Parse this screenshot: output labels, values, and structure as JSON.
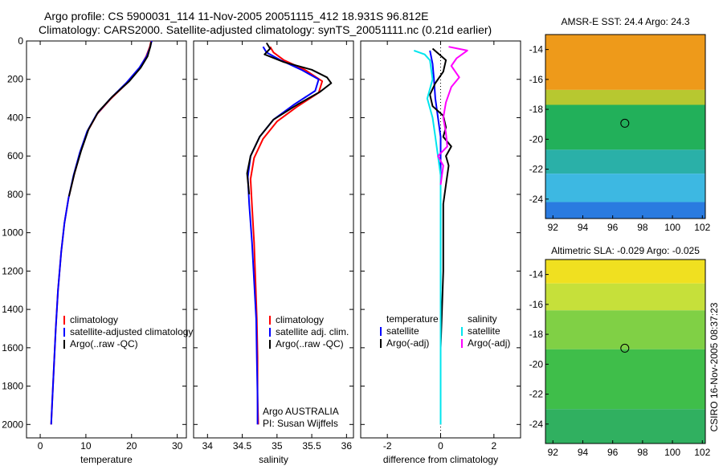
{
  "header": {
    "title_line1": "Argo profile: CS 5900031_114 11-Nov-2005 20051115_412 18.931S 96.812E",
    "title_line2": "Climatology: CARS2000. Satellite-adjusted climatology: synTS_20051111.nc (0.21d earlier)"
  },
  "colors": {
    "climatology": "#ff0000",
    "satellite": "#0000ff",
    "argo": "#000000",
    "salinity_satellite": "#00e5ee",
    "salinity_argo": "#ff00ff",
    "frame": "#000000"
  },
  "side_label": "CSIRO 16-Nov-2005 08:37:23",
  "chart_data": [
    {
      "type": "line",
      "panel": "temperature",
      "xlabel": "temperature",
      "ylabel": "",
      "xlim": [
        -3,
        32
      ],
      "ylim": [
        2070,
        0
      ],
      "x_ticks": [
        0,
        10,
        20,
        30
      ],
      "y_ticks": [
        0,
        200,
        400,
        600,
        800,
        1000,
        1200,
        1400,
        1600,
        1800,
        2000
      ],
      "legend_position": "lower-right",
      "series": [
        {
          "name": "climatology",
          "color": "#ff0000",
          "points": [
            [
              24.3,
              0
            ],
            [
              24.0,
              30
            ],
            [
              23.2,
              80
            ],
            [
              21.8,
              140
            ],
            [
              19.0,
              220
            ],
            [
              15.5,
              300
            ],
            [
              12.5,
              380
            ],
            [
              10.4,
              470
            ],
            [
              8.8,
              580
            ],
            [
              7.4,
              700
            ],
            [
              6.2,
              820
            ],
            [
              5.3,
              950
            ],
            [
              4.6,
              1100
            ],
            [
              3.9,
              1300
            ],
            [
              3.4,
              1500
            ],
            [
              3.0,
              1700
            ],
            [
              2.6,
              1900
            ],
            [
              2.4,
              2000
            ]
          ]
        },
        {
          "name": "satellite-adjusted climatology",
          "color": "#0000ff",
          "points": [
            [
              24.4,
              0
            ],
            [
              24.1,
              30
            ],
            [
              23.3,
              80
            ],
            [
              21.7,
              140
            ],
            [
              18.8,
              220
            ],
            [
              15.4,
              300
            ],
            [
              12.4,
              380
            ],
            [
              10.3,
              470
            ],
            [
              8.7,
              580
            ],
            [
              7.3,
              700
            ],
            [
              6.2,
              820
            ],
            [
              5.3,
              950
            ],
            [
              4.6,
              1100
            ],
            [
              3.9,
              1300
            ],
            [
              3.4,
              1500
            ],
            [
              3.0,
              1700
            ],
            [
              2.6,
              1900
            ],
            [
              2.4,
              2000
            ]
          ]
        },
        {
          "name": "Argo(..raw -QC)",
          "color": "#000000",
          "points": [
            [
              24.3,
              5
            ],
            [
              24.1,
              30
            ],
            [
              23.5,
              80
            ],
            [
              22.0,
              140
            ],
            [
              19.5,
              210
            ],
            [
              15.8,
              290
            ],
            [
              12.7,
              370
            ],
            [
              10.6,
              460
            ],
            [
              9.0,
              570
            ],
            [
              7.5,
              690
            ],
            [
              6.3,
              810
            ]
          ]
        }
      ]
    },
    {
      "type": "line",
      "panel": "salinity",
      "xlabel": "salinity",
      "ylabel": "",
      "xlim": [
        33.8,
        36.1
      ],
      "ylim": [
        2070,
        0
      ],
      "x_ticks": [
        34,
        34.5,
        35,
        35.5,
        36
      ],
      "legend_position": "lower-right",
      "annotation_lines": [
        "Argo AUSTRALIA",
        "PI: Susan Wijffels"
      ],
      "series": [
        {
          "name": "climatology",
          "color": "#ff0000",
          "points": [
            [
              34.9,
              30
            ],
            [
              34.95,
              60
            ],
            [
              35.1,
              100
            ],
            [
              35.4,
              150
            ],
            [
              35.65,
              210
            ],
            [
              35.6,
              270
            ],
            [
              35.3,
              340
            ],
            [
              35.0,
              420
            ],
            [
              34.8,
              510
            ],
            [
              34.67,
              610
            ],
            [
              34.62,
              720
            ],
            [
              34.64,
              860
            ],
            [
              34.67,
              1050
            ],
            [
              34.69,
              1250
            ],
            [
              34.71,
              1450
            ],
            [
              34.72,
              1650
            ],
            [
              34.72,
              1850
            ],
            [
              34.73,
              2000
            ]
          ]
        },
        {
          "name": "satellite adj. clim.",
          "color": "#0000ff",
          "points": [
            [
              34.8,
              30
            ],
            [
              34.85,
              60
            ],
            [
              35.05,
              100
            ],
            [
              35.35,
              150
            ],
            [
              35.6,
              200
            ],
            [
              35.55,
              260
            ],
            [
              35.25,
              330
            ],
            [
              34.95,
              410
            ],
            [
              34.75,
              500
            ],
            [
              34.62,
              600
            ],
            [
              34.58,
              710
            ],
            [
              34.6,
              850
            ],
            [
              34.64,
              1050
            ],
            [
              34.67,
              1250
            ],
            [
              34.7,
              1450
            ],
            [
              34.71,
              1650
            ],
            [
              34.72,
              1850
            ],
            [
              34.72,
              2000
            ]
          ]
        },
        {
          "name": "Argo(..raw -QC)",
          "color": "#000000",
          "points": [
            [
              34.85,
              10
            ],
            [
              34.9,
              40
            ],
            [
              34.82,
              70
            ],
            [
              35.1,
              110
            ],
            [
              35.5,
              150
            ],
            [
              35.72,
              190
            ],
            [
              35.78,
              220
            ],
            [
              35.62,
              265
            ],
            [
              35.3,
              330
            ],
            [
              34.95,
              410
            ],
            [
              34.75,
              500
            ],
            [
              34.62,
              600
            ],
            [
              34.57,
              690
            ],
            [
              34.6,
              800
            ]
          ]
        }
      ]
    },
    {
      "type": "line",
      "panel": "difference",
      "xlabel": "difference from climatology",
      "ylabel": "",
      "xlim": [
        -3,
        3
      ],
      "ylim": [
        2070,
        0
      ],
      "x_ticks": [
        -2,
        0,
        2
      ],
      "legend_position": "lower-right",
      "legend_headers": [
        "temperature",
        "salinity"
      ],
      "series": [
        {
          "name": "satellite",
          "group": "temperature",
          "color": "#0000ff",
          "points": [
            [
              -0.4,
              50
            ],
            [
              -0.3,
              120
            ],
            [
              -0.25,
              200
            ],
            [
              -0.2,
              300
            ],
            [
              -0.1,
              400
            ],
            [
              0,
              500
            ],
            [
              0,
              600
            ],
            [
              0,
              800
            ],
            [
              0,
              1000
            ]
          ]
        },
        {
          "name": "Argo(-adj)",
          "group": "temperature",
          "color": "#000000",
          "points": [
            [
              -0.3,
              40
            ],
            [
              0.2,
              100
            ],
            [
              0.1,
              160
            ],
            [
              -0.2,
              220
            ],
            [
              -0.4,
              280
            ],
            [
              -0.3,
              340
            ],
            [
              0.1,
              390
            ],
            [
              0.2,
              450
            ],
            [
              0.1,
              500
            ],
            [
              0.4,
              550
            ],
            [
              0.2,
              600
            ],
            [
              0.3,
              650
            ],
            [
              0.2,
              750
            ],
            [
              0.1,
              850
            ],
            [
              0.1,
              1000
            ],
            [
              0.1,
              1200
            ],
            [
              0.05,
              1400
            ],
            [
              0,
              1600
            ],
            [
              0,
              1800
            ],
            [
              0,
              2000
            ]
          ]
        },
        {
          "name": "satellite",
          "group": "salinity",
          "color": "#00e5ee",
          "points": [
            [
              -1.0,
              50
            ],
            [
              -0.6,
              70
            ],
            [
              -0.4,
              100
            ],
            [
              -0.3,
              200
            ],
            [
              -0.5,
              300
            ],
            [
              -0.3,
              400
            ],
            [
              -0.2,
              500
            ],
            [
              -0.1,
              600
            ],
            [
              0,
              700
            ],
            [
              0,
              900
            ],
            [
              0,
              1200
            ],
            [
              0,
              1500
            ],
            [
              0,
              2000
            ]
          ]
        },
        {
          "name": "Argo(-adj)",
          "group": "salinity",
          "color": "#ff00ff",
          "points": [
            [
              0.3,
              30
            ],
            [
              1.0,
              50
            ],
            [
              0.6,
              90
            ],
            [
              0.4,
              130
            ],
            [
              0.7,
              190
            ],
            [
              0.4,
              240
            ],
            [
              0.2,
              320
            ],
            [
              0.1,
              400
            ],
            [
              0.2,
              480
            ],
            [
              0.25,
              550
            ],
            [
              -0.1,
              600
            ],
            [
              0.1,
              650
            ],
            [
              0,
              750
            ]
          ]
        }
      ]
    },
    {
      "type": "heatmap",
      "panel": "sst-map",
      "title": "AMSR-E SST: 24.4 Argo: 24.3",
      "x_ticks": [
        92,
        94,
        96,
        98,
        100,
        102
      ],
      "y_ticks": [
        -14,
        -16,
        -18,
        -20,
        -22,
        -24
      ],
      "xlim": [
        91.5,
        102.2
      ],
      "ylim": [
        -25.3,
        -13.0
      ],
      "marker": {
        "lon": 96.812,
        "lat": -18.931
      },
      "color_bands": [
        {
          "lat_top": -13.0,
          "lat_bottom": -16.7,
          "color": "#ee9a1a"
        },
        {
          "lat_top": -16.7,
          "lat_bottom": -17.7,
          "color": "#b7c830"
        },
        {
          "lat_top": -17.7,
          "lat_bottom": -20.7,
          "color": "#22b05a"
        },
        {
          "lat_top": -20.7,
          "lat_bottom": -22.3,
          "color": "#2ab0a8"
        },
        {
          "lat_top": -22.3,
          "lat_bottom": -24.2,
          "color": "#3db8e2"
        },
        {
          "lat_top": -24.2,
          "lat_bottom": -25.3,
          "color": "#2a7be0"
        }
      ]
    },
    {
      "type": "heatmap",
      "panel": "sla-map",
      "title": "Altimetric SLA: -0.029 Argo: -0.025",
      "x_ticks": [
        92,
        94,
        96,
        98,
        100,
        102
      ],
      "y_ticks": [
        -14,
        -16,
        -18,
        -20,
        -22,
        -24
      ],
      "xlim": [
        91.5,
        102.2
      ],
      "ylim": [
        -25.3,
        -13.0
      ],
      "marker": {
        "lon": 96.812,
        "lat": -18.931
      },
      "color_bands": [
        {
          "lat_top": -13.0,
          "lat_bottom": -14.6,
          "color": "#f0e020"
        },
        {
          "lat_top": -14.6,
          "lat_bottom": -16.4,
          "color": "#c6e03a"
        },
        {
          "lat_top": -16.4,
          "lat_bottom": -19.0,
          "color": "#80d045"
        },
        {
          "lat_top": -19.0,
          "lat_bottom": -23.0,
          "color": "#3fbe4a"
        },
        {
          "lat_top": -23.0,
          "lat_bottom": -25.3,
          "color": "#30b060"
        }
      ]
    }
  ]
}
